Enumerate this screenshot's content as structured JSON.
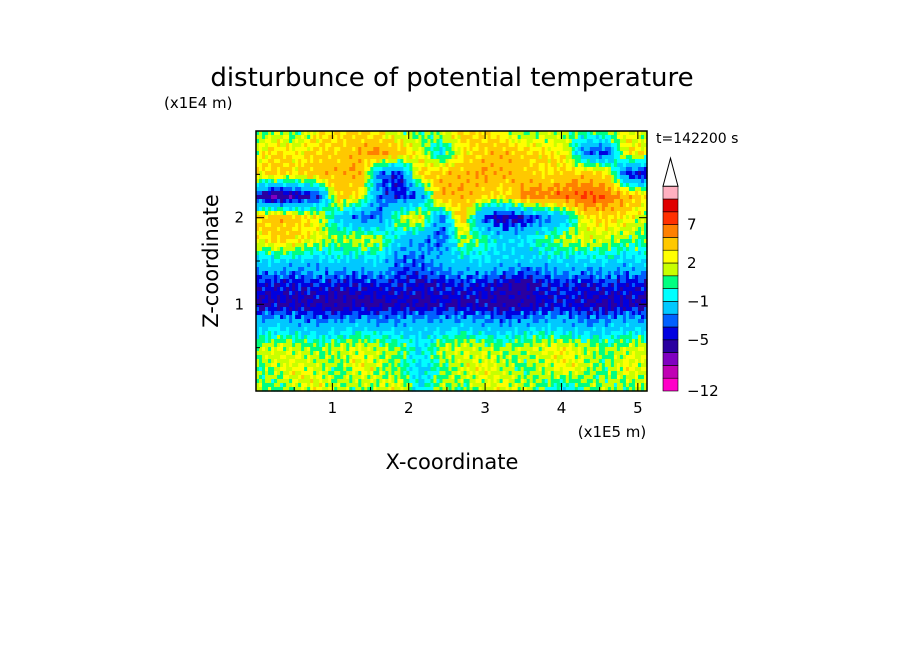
{
  "chart_data": {
    "type": "heatmap",
    "title": "disturbunce of potential temperature",
    "xlabel": "X-coordinate",
    "ylabel": "Z-coordinate",
    "x_unit": "(x1E5 m)",
    "y_unit": "(x1E4 m)",
    "time_label": "t=142200 s",
    "xlim": [
      0,
      5.12
    ],
    "ylim": [
      0,
      3.0
    ],
    "x_ticks": [
      1,
      2,
      3,
      4,
      5
    ],
    "y_ticks": [
      1,
      2
    ],
    "colorbar": {
      "levels": [
        -12,
        -11,
        -9,
        -7,
        -5,
        -4,
        -3,
        -1,
        0,
        1,
        2,
        3,
        5,
        7,
        9,
        11
      ],
      "labels": [
        {
          "value": -12,
          "text": "-12"
        },
        {
          "value": -5,
          "text": "-5"
        },
        {
          "value": -1,
          "text": "-1"
        },
        {
          "value": 2,
          "text": "2"
        },
        {
          "value": 7,
          "text": "7"
        }
      ],
      "colors": [
        "#ff00c8",
        "#c000b4",
        "#8000c0",
        "#2a00a0",
        "#0000e0",
        "#0060ff",
        "#00c8ff",
        "#00ffff",
        "#00ff80",
        "#c8ff00",
        "#ffff00",
        "#ffc800",
        "#ff8000",
        "#ff3000",
        "#e00000",
        "#ffb0c0"
      ],
      "extend": "max"
    },
    "z_grid_note": "anomaly field, values in colorbar units",
    "z": [
      [
        0.5,
        1.5,
        0.5,
        2.5,
        3.0,
        3.5,
        2.5,
        1.0,
        0.5,
        1.5,
        3.5,
        3.0,
        2.0,
        0.5,
        1.5,
        1.0,
        0.5,
        1.5,
        2.5,
        1.0
      ],
      [
        2.0,
        3.5,
        2.5,
        3.5,
        3.5,
        4.5,
        5.5,
        4.0,
        2.0,
        -1.0,
        2.5,
        3.5,
        4.5,
        3.5,
        3.0,
        2.5,
        -3.5,
        -4.5,
        3.0,
        2.5
      ],
      [
        3.0,
        3.5,
        3.0,
        4.0,
        4.5,
        5.0,
        -3.5,
        -4.5,
        3.5,
        4.0,
        4.5,
        5.0,
        4.5,
        4.0,
        3.0,
        3.5,
        4.0,
        3.5,
        -4.5,
        -5.5
      ],
      [
        -5.0,
        -7.5,
        -6.0,
        -4.5,
        3.5,
        3.0,
        -3.5,
        -4.5,
        -3.5,
        5.0,
        4.5,
        3.5,
        2.5,
        5.5,
        6.0,
        6.5,
        7.5,
        6.5,
        4.5,
        3.0
      ],
      [
        3.5,
        4.5,
        3.5,
        2.5,
        -1.5,
        -4.0,
        -3.5,
        1.5,
        3.0,
        -3.5,
        4.0,
        -4.0,
        -5.5,
        -5.0,
        -3.5,
        -2.0,
        2.5,
        3.5,
        2.5,
        1.5
      ],
      [
        2.0,
        3.5,
        3.0,
        2.0,
        1.0,
        2.0,
        1.5,
        -1.5,
        -2.5,
        -4.0,
        1.5,
        0.5,
        -1.5,
        -1.0,
        0.5,
        1.5,
        2.0,
        1.5,
        1.0,
        0.5
      ],
      [
        -1.5,
        -1.0,
        -1.5,
        -2.0,
        -1.0,
        -1.5,
        -1.0,
        -3.5,
        -3.5,
        -2.0,
        -1.5,
        -1.0,
        -1.5,
        -2.0,
        -1.5,
        -1.0,
        -1.5,
        -1.0,
        -1.5,
        -1.0
      ],
      [
        -4.5,
        -4.5,
        -4.5,
        -4.0,
        -4.5,
        -4.5,
        -4.0,
        -4.5,
        -5.0,
        -4.5,
        -4.0,
        -4.5,
        -5.0,
        -5.5,
        -4.5,
        -4.0,
        -4.5,
        -4.0,
        -4.5,
        -4.5
      ],
      [
        -5.5,
        -5.0,
        -5.5,
        -5.5,
        -6.0,
        -5.5,
        -5.5,
        -5.0,
        -5.5,
        -5.0,
        -5.5,
        -5.0,
        -6.0,
        -5.5,
        -5.0,
        -4.5,
        -5.0,
        -5.5,
        -5.0,
        -5.5
      ],
      [
        -2.0,
        -1.5,
        -2.0,
        -2.5,
        -2.0,
        -1.5,
        -2.0,
        -2.5,
        -1.5,
        -2.0,
        -1.5,
        -2.0,
        -2.5,
        -2.0,
        -1.5,
        -2.0,
        -2.5,
        -2.0,
        -1.5,
        -2.0
      ],
      [
        1.5,
        2.0,
        1.5,
        1.0,
        1.5,
        2.0,
        1.5,
        1.0,
        -1.0,
        1.5,
        2.0,
        1.5,
        1.0,
        1.5,
        2.0,
        2.5,
        1.5,
        1.0,
        1.5,
        2.0
      ],
      [
        0.5,
        1.5,
        2.5,
        1.5,
        0.5,
        2.5,
        1.5,
        0.5,
        -1.5,
        0.5,
        1.5,
        2.5,
        1.5,
        0.5,
        1.5,
        2.5,
        1.5,
        0.5,
        2.5,
        1.5
      ],
      [
        1.5,
        0.5,
        1.5,
        2.5,
        1.5,
        0.5,
        1.5,
        2.5,
        -1.0,
        1.5,
        0.5,
        1.5,
        2.5,
        1.5,
        0.5,
        -1.5,
        0.5,
        1.5,
        0.5,
        1.5
      ]
    ]
  }
}
